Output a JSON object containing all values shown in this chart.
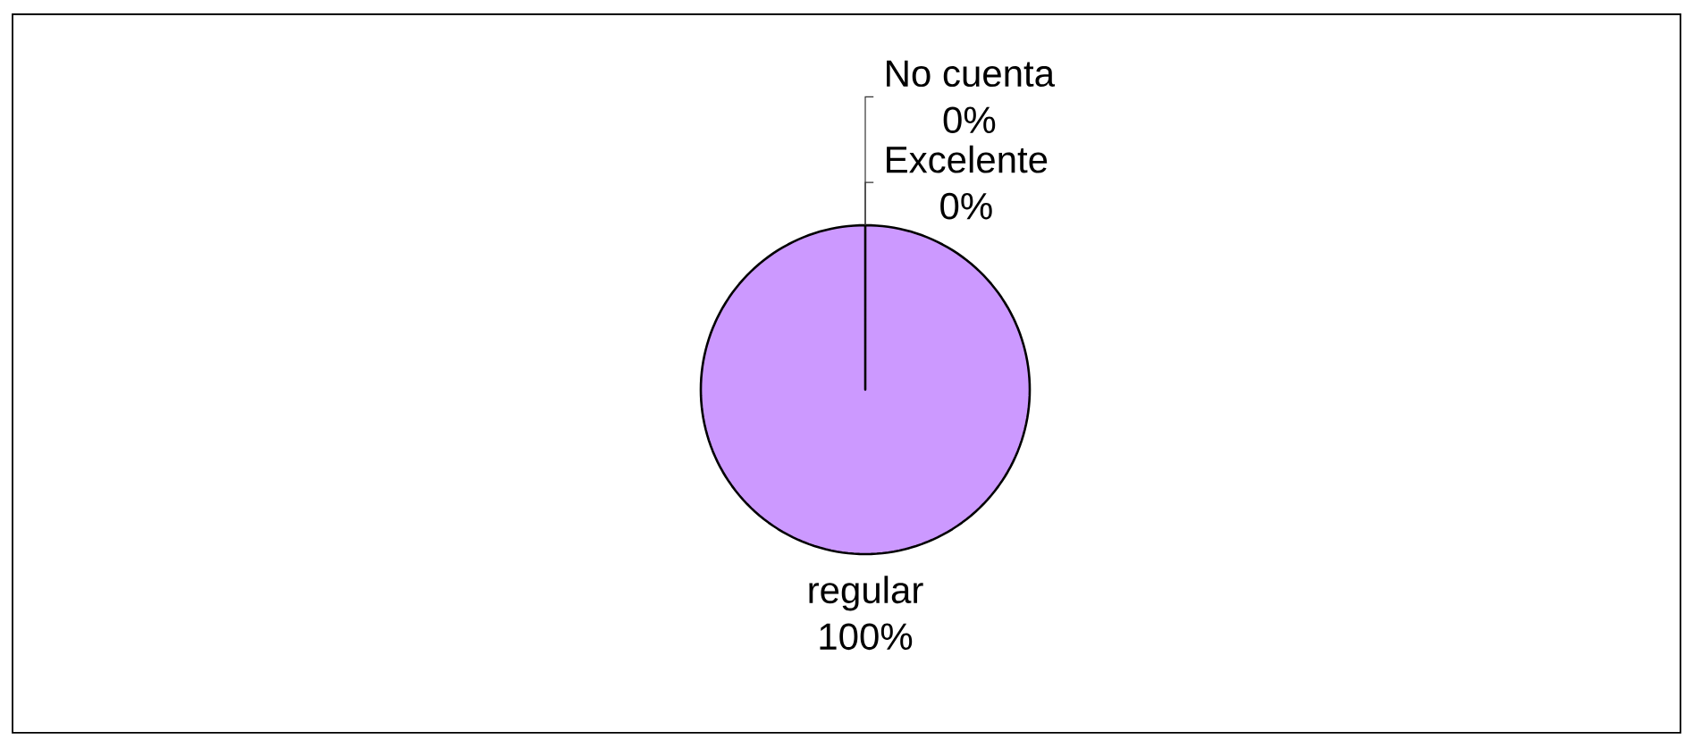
{
  "chart_data": {
    "type": "pie",
    "categories": [
      "regular",
      "Excelente",
      "No cuenta"
    ],
    "values": [
      100,
      0,
      0
    ],
    "colors": [
      "#cc99ff",
      null,
      null
    ],
    "value_labels": [
      "100%",
      "0%",
      "0%"
    ]
  }
}
